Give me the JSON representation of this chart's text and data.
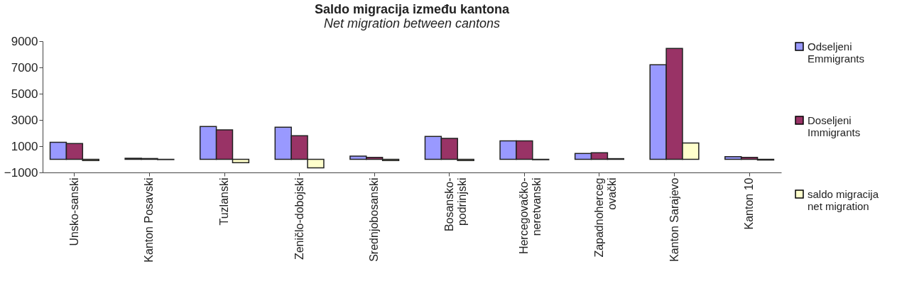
{
  "chart_data": {
    "type": "bar",
    "title": "Saldo migracija između kantona",
    "subtitle": "Net migration between cantons",
    "categories": [
      "Unsko-sanski",
      "Kanton Posavski",
      "Tuzlanski",
      "Zeničlo-dobojski",
      "Srednjobosanski",
      "Bosansko-\npodrinjski",
      "Hercegovačko-\nneretvanski",
      "Zapadnoherceg\novački",
      "Kanton Sarajevo",
      "Kanton 10"
    ],
    "series": [
      {
        "name": "Odseljeni\nEmmigrants",
        "color": "#9999ff",
        "values": [
          1300,
          80,
          2500,
          2450,
          250,
          1750,
          1400,
          450,
          7200,
          200
        ]
      },
      {
        "name": "Doseljeni\nImmigrants",
        "color": "#993366",
        "values": [
          1200,
          60,
          2250,
          1800,
          150,
          1600,
          1400,
          500,
          8450,
          150
        ]
      },
      {
        "name": "saldo migracija\nnet migration",
        "color": "#ffffcc",
        "values": [
          -100,
          -20,
          -250,
          -650,
          -100,
          -100,
          -30,
          50,
          1250,
          -50
        ]
      }
    ],
    "ylim": [
      -1000,
      9000
    ],
    "yticks": [
      -1000,
      1000,
      3000,
      5000,
      7000,
      9000
    ],
    "grid": false,
    "legend": "right"
  }
}
